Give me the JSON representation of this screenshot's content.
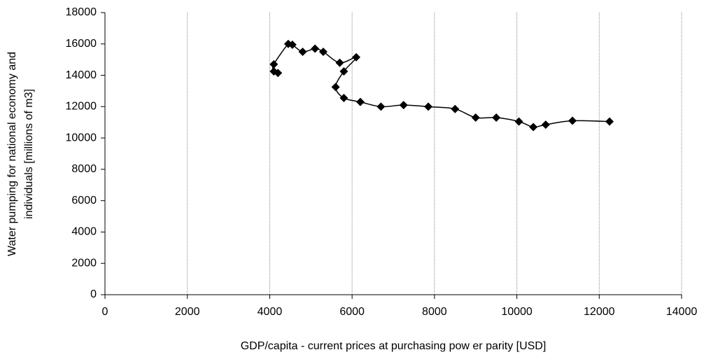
{
  "chart_data": {
    "type": "scatter-line",
    "x_label": "GDP/capita - current prices at purchasing pow er parity [USD]",
    "y_label": [
      "Water pumping for national economy and",
      "individuals [millions of m3]"
    ],
    "x": [
      4200,
      4100,
      4100,
      4450,
      4550,
      4800,
      5100,
      5300,
      5700,
      6100,
      5800,
      5600,
      5800,
      6200,
      6700,
      7250,
      7850,
      8500,
      9000,
      9500,
      10050,
      10400,
      10700,
      11350,
      12250
    ],
    "values": [
      14150,
      14250,
      14700,
      16000,
      15950,
      15500,
      15700,
      15500,
      14800,
      15150,
      14250,
      13250,
      12550,
      12300,
      12000,
      12100,
      12000,
      11850,
      11300,
      11300,
      11050,
      10700,
      10850,
      11100,
      11050
    ],
    "color": "#000000",
    "xlim": [
      0,
      14000
    ],
    "xticks": [
      0,
      2000,
      4000,
      6000,
      8000,
      10000,
      12000,
      14000
    ],
    "ylim": [
      0,
      18000
    ],
    "yticks": [
      0,
      2000,
      4000,
      6000,
      8000,
      10000,
      12000,
      14000,
      16000,
      18000
    ],
    "grid": "x",
    "smooth": true
  }
}
